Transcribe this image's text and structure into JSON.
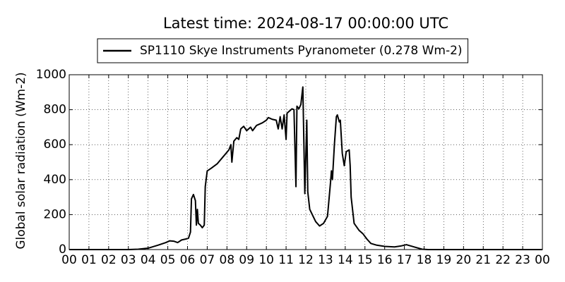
{
  "chart_data": {
    "type": "line",
    "title": "Latest time: 2024-08-17 00:00:00 UTC",
    "y_label": "Global solar radiation (Wm-2)",
    "x": [
      0,
      3.0,
      3.5,
      4.0,
      4.5,
      4.9,
      5.1,
      5.3,
      5.5,
      5.7,
      5.9,
      6.05,
      6.15,
      6.2,
      6.3,
      6.4,
      6.45,
      6.5,
      6.55,
      6.65,
      6.75,
      6.85,
      6.9,
      7.0,
      7.2,
      7.5,
      7.8,
      8.1,
      8.2,
      8.25,
      8.35,
      8.5,
      8.6,
      8.7,
      8.85,
      9.0,
      9.2,
      9.3,
      9.5,
      9.8,
      10.0,
      10.1,
      10.3,
      10.5,
      10.6,
      10.7,
      10.8,
      10.9,
      11.0,
      11.05,
      11.3,
      11.4,
      11.5,
      11.55,
      11.65,
      11.75,
      11.85,
      11.95,
      12.05,
      12.1,
      12.2,
      12.5,
      12.7,
      12.9,
      13.1,
      13.25,
      13.3,
      13.35,
      13.45,
      13.55,
      13.6,
      13.7,
      13.75,
      13.85,
      13.95,
      14.05,
      14.2,
      14.25,
      14.3,
      14.45,
      14.7,
      14.9,
      15.1,
      15.3,
      15.6,
      16.0,
      16.5,
      16.8,
      17.1,
      17.5,
      17.9,
      18.2,
      24
    ],
    "series": [
      {
        "name": "SP1110 Skye Instruments Pyranometer (0.278 Wm-2)",
        "color": "#000000",
        "values": [
          0,
          0,
          2,
          8,
          25,
          40,
          50,
          48,
          40,
          55,
          60,
          65,
          100,
          290,
          315,
          280,
          140,
          230,
          150,
          140,
          125,
          140,
          360,
          450,
          465,
          490,
          530,
          570,
          600,
          500,
          620,
          640,
          630,
          690,
          705,
          680,
          700,
          680,
          710,
          725,
          740,
          755,
          745,
          740,
          690,
          760,
          690,
          770,
          630,
          780,
          805,
          800,
          360,
          820,
          805,
          830,
          930,
          320,
          740,
          330,
          230,
          160,
          135,
          150,
          190,
          380,
          450,
          400,
          600,
          760,
          770,
          730,
          740,
          550,
          480,
          560,
          570,
          480,
          300,
          150,
          110,
          90,
          60,
          35,
          25,
          18,
          15,
          20,
          28,
          15,
          2,
          0,
          0
        ]
      }
    ],
    "xlim": [
      0,
      24
    ],
    "xticks": [
      {
        "value": 0,
        "label": "00"
      },
      {
        "value": 1,
        "label": "01"
      },
      {
        "value": 2,
        "label": "02"
      },
      {
        "value": 3,
        "label": "03"
      },
      {
        "value": 4,
        "label": "04"
      },
      {
        "value": 5,
        "label": "05"
      },
      {
        "value": 6,
        "label": "06"
      },
      {
        "value": 7,
        "label": "07"
      },
      {
        "value": 8,
        "label": "08"
      },
      {
        "value": 9,
        "label": "09"
      },
      {
        "value": 10,
        "label": "10"
      },
      {
        "value": 11,
        "label": "11"
      },
      {
        "value": 12,
        "label": "12"
      },
      {
        "value": 13,
        "label": "13"
      },
      {
        "value": 14,
        "label": "14"
      },
      {
        "value": 15,
        "label": "15"
      },
      {
        "value": 16,
        "label": "16"
      },
      {
        "value": 17,
        "label": "17"
      },
      {
        "value": 18,
        "label": "18"
      },
      {
        "value": 19,
        "label": "19"
      },
      {
        "value": 20,
        "label": "20"
      },
      {
        "value": 21,
        "label": "21"
      },
      {
        "value": 22,
        "label": "22"
      },
      {
        "value": 23,
        "label": "23"
      },
      {
        "value": 24,
        "label": "00"
      }
    ],
    "ylim": [
      0,
      1000
    ],
    "yticks": [
      0,
      200,
      400,
      600,
      800,
      1000
    ],
    "grid": true,
    "legend": "top"
  }
}
